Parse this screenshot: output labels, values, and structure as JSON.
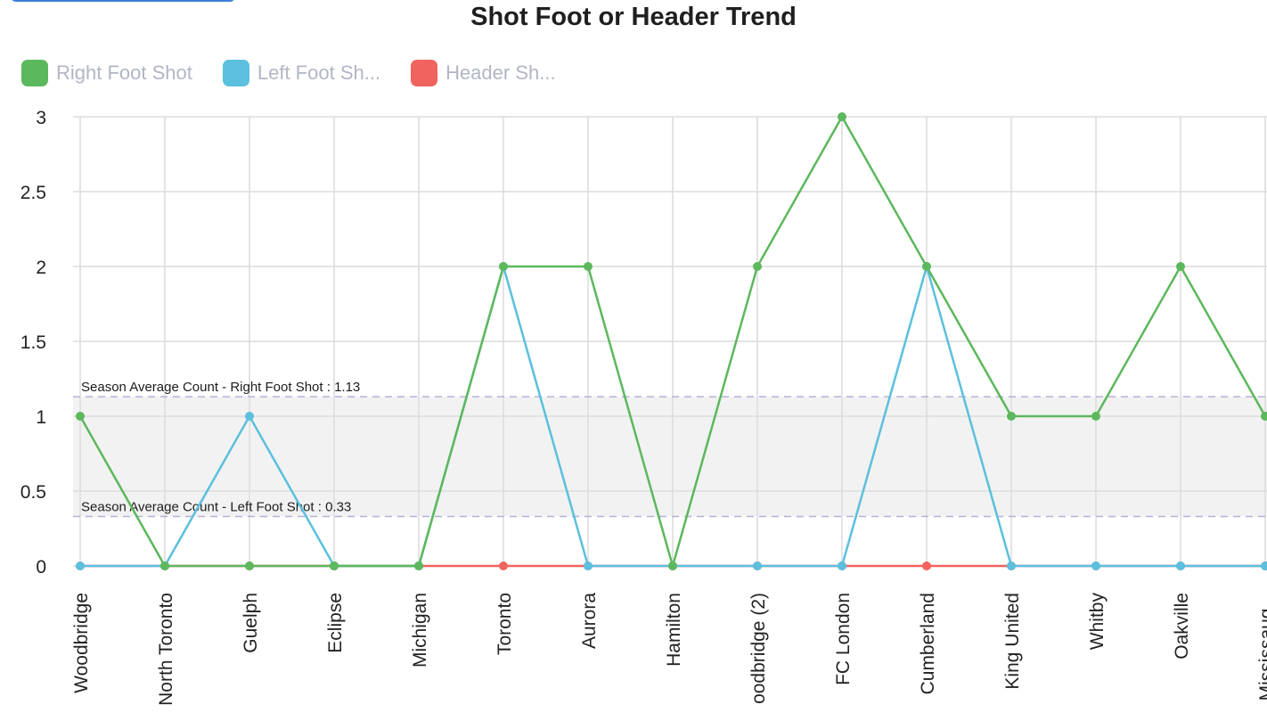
{
  "title": "Shot Foot or Header Trend",
  "legend": [
    {
      "label": "Right Foot Shot",
      "color": "#5cb85c"
    },
    {
      "label": "Left Foot Sh...",
      "color": "#5bc0de"
    },
    {
      "label": "Header Sh...",
      "color": "#f0635f"
    }
  ],
  "chart_data": {
    "type": "line",
    "title": "Shot Foot or Header Trend",
    "categories": [
      "Woodbridge",
      "North Toronto",
      "Guelph",
      "Eclipse",
      "Michigan",
      "Toronto",
      "Aurora",
      "Hamilton",
      "oodbridge (2)",
      "FC London",
      "Cumberland",
      "King United",
      "Whitby",
      "Oakville",
      "Mississaug..."
    ],
    "series": [
      {
        "name": "Right Foot Shot",
        "color": "#5cb85c",
        "values": [
          1,
          0,
          0,
          0,
          0,
          2,
          2,
          0,
          2,
          3,
          2,
          1,
          1,
          2,
          1
        ]
      },
      {
        "name": "Left Foot Sh...",
        "color": "#5bc0de",
        "values": [
          0,
          0,
          1,
          0,
          0,
          2,
          0,
          0,
          0,
          0,
          2,
          0,
          0,
          0,
          0
        ]
      },
      {
        "name": "Header Sh...",
        "color": "#f0635f",
        "values": [
          0,
          0,
          0,
          0,
          0,
          0,
          0,
          0,
          0,
          0,
          0,
          0,
          0,
          0,
          0
        ]
      }
    ],
    "ylim": [
      0,
      3
    ],
    "yticks": [
      "0",
      "0.5",
      "1",
      "1.5",
      "2",
      "2.5",
      "3"
    ],
    "grid": true,
    "legend_position": "top-left",
    "reference_lines": [
      {
        "label": "Season Average Count - Right Foot Shot : 1.13",
        "value": 1.13
      },
      {
        "label": "Season Average Count - Left Foot Shot : 0.33",
        "value": 0.33
      }
    ]
  }
}
